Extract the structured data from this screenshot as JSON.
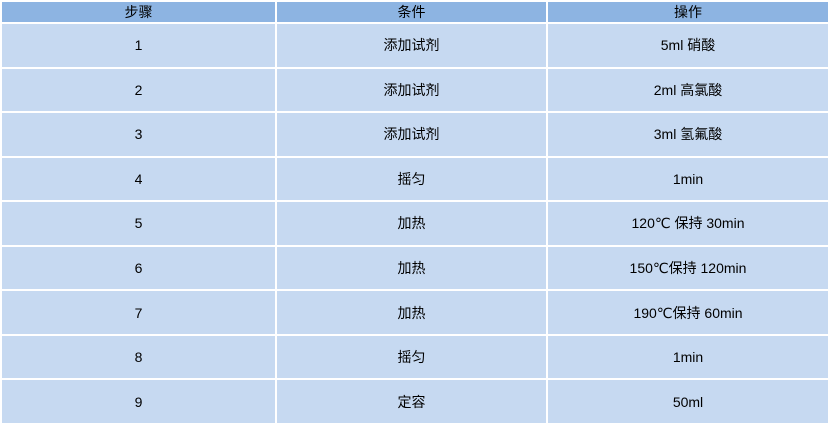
{
  "table": {
    "headers": [
      "步骤",
      "条件",
      "操作"
    ],
    "rows": [
      [
        "1",
        "添加试剂",
        "5ml 硝酸"
      ],
      [
        "2",
        "添加试剂",
        "2ml 高氯酸"
      ],
      [
        "3",
        "添加试剂",
        "3ml 氢氟酸"
      ],
      [
        "4",
        "摇匀",
        "1min"
      ],
      [
        "5",
        "加热",
        "120℃ 保持 30min"
      ],
      [
        "6",
        "加热",
        "150℃保持 120min"
      ],
      [
        "7",
        "加热",
        "190℃保持 60min"
      ],
      [
        "8",
        "摇匀",
        "1min"
      ],
      [
        "9",
        "定容",
        "50ml"
      ]
    ]
  },
  "colors": {
    "header_bg": "#8DB4E2",
    "row_bg": "#C6D9F1",
    "grid": "#FFFFFF",
    "text": "#000000"
  }
}
